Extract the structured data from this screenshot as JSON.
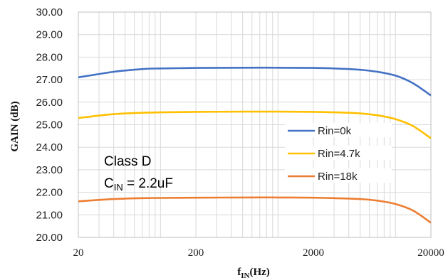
{
  "chart_data": {
    "type": "line",
    "xscale": "log",
    "xlim": [
      20,
      20000
    ],
    "ylim": [
      20,
      30
    ],
    "grid": true,
    "legend_position": "center-right",
    "xlabel": "f",
    "xlabel_sub": "IN",
    "xlabel_unit": "(Hz)",
    "ylabel": "GAIN (dB)",
    "x_tick_labels": [
      "20",
      "200",
      "2000",
      "20000"
    ],
    "y_tick_labels": [
      "20.00",
      "21.00",
      "22.00",
      "23.00",
      "24.00",
      "25.00",
      "26.00",
      "27.00",
      "28.00",
      "29.00",
      "30.00"
    ],
    "annotation_line1": "Class D",
    "annotation_cin_main": "C",
    "annotation_cin_sub": "IN",
    "annotation_cin_rest": " = 2.2uF",
    "x": [
      20,
      40,
      70,
      100,
      200,
      500,
      1000,
      2000,
      3000,
      5000,
      7000,
      10000,
      14000,
      20000
    ],
    "series": [
      {
        "name": "Rin=0k",
        "color": "#4472C4",
        "values": [
          27.1,
          27.35,
          27.47,
          27.5,
          27.52,
          27.53,
          27.53,
          27.52,
          27.5,
          27.44,
          27.35,
          27.18,
          26.85,
          26.3
        ]
      },
      {
        "name": "Rin=4.7k",
        "color": "#FFC000",
        "values": [
          25.3,
          25.47,
          25.53,
          25.55,
          25.57,
          25.58,
          25.58,
          25.57,
          25.55,
          25.5,
          25.42,
          25.25,
          24.95,
          24.4
        ]
      },
      {
        "name": "Rin=18k",
        "color": "#ED7D31",
        "values": [
          21.6,
          21.7,
          21.74,
          21.75,
          21.76,
          21.77,
          21.77,
          21.76,
          21.74,
          21.7,
          21.63,
          21.48,
          21.2,
          20.65
        ]
      }
    ]
  }
}
